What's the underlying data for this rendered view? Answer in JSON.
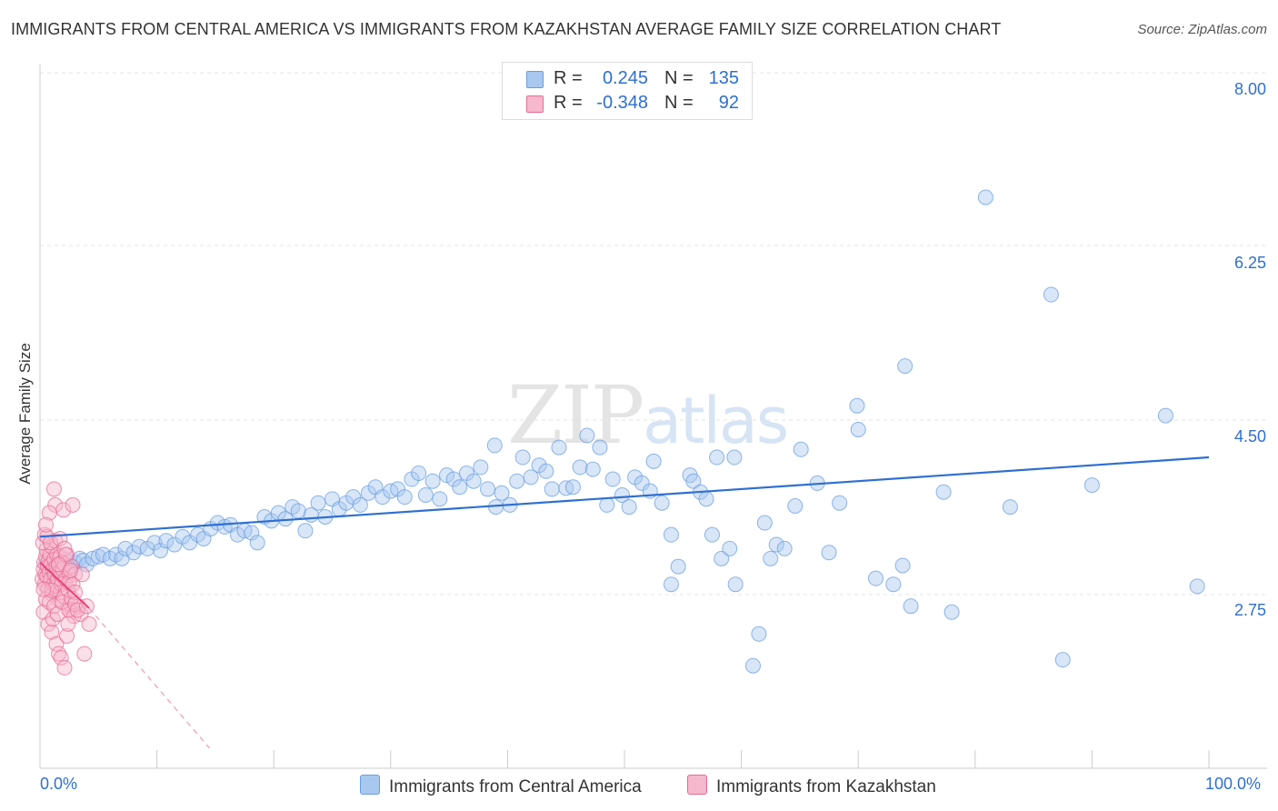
{
  "title": "IMMIGRANTS FROM CENTRAL AMERICA VS IMMIGRANTS FROM KAZAKHSTAN AVERAGE FAMILY SIZE CORRELATION CHART",
  "source": "Source: ZipAtlas.com",
  "watermark": {
    "zip": "ZIP",
    "atlas": "atlas"
  },
  "legend": {
    "rows": [
      {
        "r_label": "R =",
        "r_value": "0.245",
        "n_label": "N =",
        "n_value": "135",
        "color": "#a8c8f0"
      },
      {
        "r_label": "R =",
        "r_value": "-0.348",
        "n_label": "N =",
        "n_value": "92",
        "color": "#f6b8cc"
      }
    ]
  },
  "bottom_legend": [
    {
      "label": "Immigrants from Central America",
      "color": "#a8c8f0"
    },
    {
      "label": "Immigrants from Kazakhstan",
      "color": "#f6b8cc"
    }
  ],
  "chart_data": {
    "type": "scatter",
    "title": "IMMIGRANTS FROM CENTRAL AMERICA VS IMMIGRANTS FROM KAZAKHSTAN AVERAGE FAMILY SIZE CORRELATION CHART",
    "xlabel": "",
    "ylabel": "Average Family Size",
    "x_tick_labels": [
      "0.0%",
      "100.0%"
    ],
    "y_tick_labels": [
      "8.00",
      "6.25",
      "4.50",
      "2.75"
    ],
    "y_ticks": [
      8.0,
      6.25,
      4.5,
      2.75
    ],
    "xlim": [
      0,
      100
    ],
    "ylim": [
      1.3,
      8.2
    ],
    "grid": true,
    "legend_position": "top-center",
    "series": [
      {
        "name": "Immigrants from Central America",
        "color": "#6a9de0",
        "fill": "#a8c8f0",
        "r": 0.245,
        "n": 135,
        "trend": {
          "x": [
            0,
            100
          ],
          "y": [
            3.48,
            4.28
          ]
        },
        "points": [
          [
            0.5,
            3.2
          ],
          [
            1.0,
            3.15
          ],
          [
            1.3,
            3.25
          ],
          [
            1.5,
            3.18
          ],
          [
            1.8,
            3.22
          ],
          [
            2.0,
            3.2
          ],
          [
            2.3,
            3.25
          ],
          [
            2.6,
            3.18
          ],
          [
            3.0,
            3.22
          ],
          [
            3.4,
            3.26
          ],
          [
            3.7,
            3.24
          ],
          [
            4.0,
            3.2
          ],
          [
            4.5,
            3.26
          ],
          [
            5.0,
            3.28
          ],
          [
            5.4,
            3.3
          ],
          [
            6.0,
            3.26
          ],
          [
            6.5,
            3.3
          ],
          [
            7.0,
            3.26
          ],
          [
            7.3,
            3.36
          ],
          [
            8.0,
            3.32
          ],
          [
            8.5,
            3.38
          ],
          [
            9.2,
            3.36
          ],
          [
            9.8,
            3.42
          ],
          [
            10.3,
            3.34
          ],
          [
            10.8,
            3.44
          ],
          [
            11.5,
            3.4
          ],
          [
            12.2,
            3.48
          ],
          [
            12.8,
            3.42
          ],
          [
            13.5,
            3.5
          ],
          [
            14.0,
            3.46
          ],
          [
            14.6,
            3.56
          ],
          [
            15.2,
            3.62
          ],
          [
            15.8,
            3.58
          ],
          [
            16.3,
            3.6
          ],
          [
            16.9,
            3.5
          ],
          [
            17.5,
            3.54
          ],
          [
            18.1,
            3.52
          ],
          [
            18.6,
            3.42
          ],
          [
            19.2,
            3.68
          ],
          [
            19.8,
            3.64
          ],
          [
            20.4,
            3.72
          ],
          [
            21.0,
            3.66
          ],
          [
            21.6,
            3.78
          ],
          [
            22.1,
            3.74
          ],
          [
            22.7,
            3.54
          ],
          [
            23.2,
            3.7
          ],
          [
            23.8,
            3.82
          ],
          [
            24.4,
            3.68
          ],
          [
            25.0,
            3.86
          ],
          [
            25.6,
            3.76
          ],
          [
            26.2,
            3.82
          ],
          [
            26.8,
            3.88
          ],
          [
            27.4,
            3.8
          ],
          [
            28.1,
            3.92
          ],
          [
            28.7,
            3.98
          ],
          [
            29.3,
            3.88
          ],
          [
            30.0,
            3.94
          ],
          [
            30.6,
            3.96
          ],
          [
            31.2,
            3.88
          ],
          [
            31.8,
            4.06
          ],
          [
            32.4,
            4.12
          ],
          [
            33.0,
            3.9
          ],
          [
            33.6,
            4.04
          ],
          [
            34.2,
            3.86
          ],
          [
            34.8,
            4.1
          ],
          [
            35.4,
            4.06
          ],
          [
            35.9,
            3.98
          ],
          [
            36.5,
            4.12
          ],
          [
            37.1,
            4.04
          ],
          [
            37.7,
            4.18
          ],
          [
            38.3,
            3.96
          ],
          [
            38.9,
            4.4
          ],
          [
            39.5,
            3.92
          ],
          [
            39.0,
            3.78
          ],
          [
            40.2,
            3.8
          ],
          [
            40.8,
            4.04
          ],
          [
            41.3,
            4.28
          ],
          [
            42.0,
            4.08
          ],
          [
            42.7,
            4.2
          ],
          [
            43.3,
            4.14
          ],
          [
            43.8,
            3.96
          ],
          [
            44.4,
            4.38
          ],
          [
            45.0,
            3.97
          ],
          [
            45.6,
            3.98
          ],
          [
            46.2,
            4.18
          ],
          [
            46.8,
            4.5
          ],
          [
            47.3,
            4.16
          ],
          [
            47.9,
            4.38
          ],
          [
            48.5,
            3.8
          ],
          [
            49.0,
            4.06
          ],
          [
            49.8,
            3.9
          ],
          [
            50.4,
            3.78
          ],
          [
            50.9,
            4.08
          ],
          [
            51.5,
            4.02
          ],
          [
            52.5,
            4.24
          ],
          [
            52.2,
            3.94
          ],
          [
            53.2,
            3.82
          ],
          [
            54.0,
            3.5
          ],
          [
            54.6,
            3.18
          ],
          [
            54.0,
            3.0
          ],
          [
            55.6,
            4.1
          ],
          [
            55.9,
            4.04
          ],
          [
            56.5,
            3.93
          ],
          [
            57.0,
            3.86
          ],
          [
            57.9,
            4.28
          ],
          [
            58.3,
            3.26
          ],
          [
            57.5,
            3.5
          ],
          [
            59.0,
            3.36
          ],
          [
            59.4,
            4.28
          ],
          [
            59.5,
            3.0
          ],
          [
            61.5,
            2.5
          ],
          [
            61.0,
            2.18
          ],
          [
            62.5,
            3.26
          ],
          [
            62.0,
            3.62
          ],
          [
            63.0,
            3.4
          ],
          [
            63.7,
            3.36
          ],
          [
            65.1,
            4.36
          ],
          [
            64.6,
            3.79
          ],
          [
            66.5,
            4.02
          ],
          [
            67.5,
            3.32
          ],
          [
            68.4,
            3.82
          ],
          [
            69.9,
            4.8
          ],
          [
            70.0,
            4.56
          ],
          [
            71.5,
            3.06
          ],
          [
            73.0,
            3.0
          ],
          [
            73.8,
            3.19
          ],
          [
            74.0,
            5.2
          ],
          [
            74.5,
            2.78
          ],
          [
            77.3,
            3.93
          ],
          [
            78.0,
            2.72
          ],
          [
            80.9,
            6.9
          ],
          [
            83.0,
            3.78
          ],
          [
            86.5,
            5.92
          ],
          [
            87.5,
            2.24
          ],
          [
            90.0,
            4.0
          ],
          [
            96.3,
            4.7
          ],
          [
            99.0,
            2.98
          ]
        ]
      },
      {
        "name": "Immigrants from Kazakhstan",
        "color": "#e86a94",
        "fill": "#f6b8cc",
        "r": -0.348,
        "n": 92,
        "trend": {
          "x": [
            0,
            4.2
          ],
          "y": [
            3.22,
            2.76
          ]
        },
        "trend_dashed": {
          "x": [
            4.2,
            14.5
          ],
          "y": [
            2.76,
            1.35
          ]
        },
        "points": [
          [
            0.2,
            3.05
          ],
          [
            0.3,
            3.15
          ],
          [
            0.35,
            3.22
          ],
          [
            0.4,
            3.0
          ],
          [
            0.45,
            3.1
          ],
          [
            0.5,
            3.28
          ],
          [
            0.55,
            3.35
          ],
          [
            0.6,
            3.08
          ],
          [
            0.65,
            3.18
          ],
          [
            0.7,
            2.95
          ],
          [
            0.75,
            3.25
          ],
          [
            0.8,
            3.12
          ],
          [
            0.85,
            3.3
          ],
          [
            0.9,
            3.05
          ],
          [
            0.95,
            3.2
          ],
          [
            1.0,
            3.38
          ],
          [
            1.05,
            2.9
          ],
          [
            1.1,
            3.15
          ],
          [
            1.15,
            3.0
          ],
          [
            1.2,
            3.25
          ],
          [
            1.25,
            3.1
          ],
          [
            1.3,
            3.44
          ],
          [
            1.35,
            2.98
          ],
          [
            1.4,
            3.18
          ],
          [
            1.45,
            3.3
          ],
          [
            1.5,
            3.05
          ],
          [
            1.55,
            2.85
          ],
          [
            1.6,
            3.2
          ],
          [
            1.65,
            3.12
          ],
          [
            1.7,
            3.28
          ],
          [
            1.75,
            2.92
          ],
          [
            1.8,
            3.1
          ],
          [
            1.85,
            3.0
          ],
          [
            1.9,
            3.22
          ],
          [
            1.95,
            3.15
          ],
          [
            2.0,
            2.88
          ],
          [
            2.1,
            3.2
          ],
          [
            2.2,
            3.05
          ],
          [
            2.3,
            3.3
          ],
          [
            2.4,
            2.95
          ],
          [
            2.5,
            3.12
          ],
          [
            2.6,
            2.8
          ],
          [
            2.7,
            3.18
          ],
          [
            2.8,
            2.75
          ],
          [
            3.0,
            3.1
          ],
          [
            3.3,
            2.78
          ],
          [
            0.25,
            3.42
          ],
          [
            0.3,
            2.72
          ],
          [
            0.4,
            3.5
          ],
          [
            0.5,
            2.85
          ],
          [
            0.6,
            3.48
          ],
          [
            0.7,
            2.6
          ],
          [
            0.8,
            2.82
          ],
          [
            0.9,
            3.42
          ],
          [
            1.0,
            2.52
          ],
          [
            1.1,
            2.65
          ],
          [
            1.2,
            2.78
          ],
          [
            1.3,
            3.8
          ],
          [
            1.4,
            2.4
          ],
          [
            1.5,
            2.7
          ],
          [
            1.6,
            2.3
          ],
          [
            1.7,
            3.46
          ],
          [
            1.8,
            2.26
          ],
          [
            1.9,
            2.82
          ],
          [
            2.0,
            3.75
          ],
          [
            2.1,
            2.16
          ],
          [
            2.3,
            2.48
          ],
          [
            2.5,
            2.74
          ],
          [
            2.7,
            2.86
          ],
          [
            2.9,
            2.68
          ],
          [
            2.1,
            3.36
          ],
          [
            2.5,
            3.02
          ],
          [
            3.5,
            2.7
          ],
          [
            1.2,
            3.96
          ],
          [
            0.8,
            3.72
          ],
          [
            2.2,
            3.3
          ],
          [
            2.8,
            3.0
          ],
          [
            3.0,
            2.92
          ],
          [
            3.6,
            3.1
          ],
          [
            2.4,
            2.6
          ],
          [
            1.0,
            2.94
          ],
          [
            0.5,
            3.6
          ],
          [
            1.6,
            3.2
          ],
          [
            2.6,
            3.14
          ],
          [
            3.0,
            2.8
          ],
          [
            3.2,
            2.74
          ],
          [
            3.8,
            2.3
          ],
          [
            4.0,
            2.78
          ],
          [
            4.2,
            2.6
          ],
          [
            0.3,
            2.95
          ],
          [
            2.8,
            3.8
          ]
        ]
      }
    ]
  }
}
